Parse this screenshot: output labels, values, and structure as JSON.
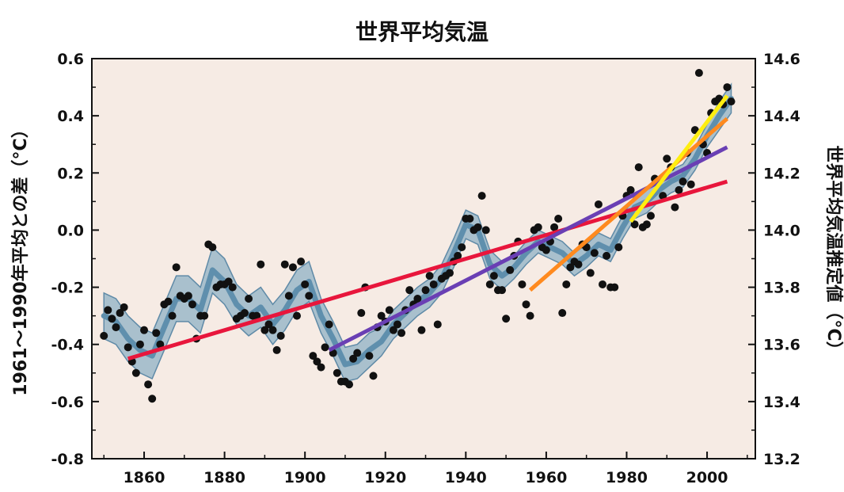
{
  "chart_data": {
    "type": "scatter",
    "title": "世界平均気温",
    "ylabel_left": "1961〜1990年平均との差（°C）",
    "ylabel_right": "世界平均気温推定値（°C）",
    "x_ticks": [
      1860,
      1880,
      1900,
      1920,
      1940,
      1960,
      1980,
      2000
    ],
    "xlim": [
      1847,
      2012
    ],
    "y_left_ticks": [
      "0.6",
      "0.4",
      "0.2",
      "0.0",
      "-0.2",
      "-0.4",
      "-0.6",
      "-0.8"
    ],
    "y_left_lim": [
      -0.8,
      0.6
    ],
    "y_right_ticks": [
      "14.6",
      "14.4",
      "14.2",
      "14.0",
      "13.8",
      "13.6",
      "13.4",
      "13.2"
    ],
    "y_right_lim": [
      13.2,
      14.6
    ],
    "colors": {
      "background": "#f6ebe4",
      "band_fill": "#8fb1c6",
      "band_edge": "#5f8aa7",
      "smooth_line": "#5f8fad",
      "points": "#111111",
      "trend_150yr": "#e8163c",
      "trend_100yr": "#6a3fb4",
      "trend_50yr": "#ff8a1f",
      "trend_25yr": "#ffee10"
    },
    "series": [
      {
        "type": "scatter",
        "x": [
          1850,
          1851,
          1852,
          1853,
          1854,
          1855,
          1856,
          1857,
          1858,
          1859,
          1860,
          1861,
          1862,
          1863,
          1864,
          1865,
          1866,
          1867,
          1868,
          1869,
          1870,
          1871,
          1872,
          1873,
          1874,
          1875,
          1876,
          1877,
          1878,
          1879,
          1880,
          1881,
          1882,
          1883,
          1884,
          1885,
          1886,
          1887,
          1888,
          1889,
          1890,
          1891,
          1892,
          1893,
          1894,
          1895,
          1896,
          1897,
          1898,
          1899,
          1900,
          1901,
          1902,
          1903,
          1904,
          1905,
          1906,
          1907,
          1908,
          1909,
          1910,
          1911,
          1912,
          1913,
          1914,
          1915,
          1916,
          1917,
          1918,
          1919,
          1920,
          1921,
          1922,
          1923,
          1924,
          1925,
          1926,
          1927,
          1928,
          1929,
          1930,
          1931,
          1932,
          1933,
          1934,
          1935,
          1936,
          1937,
          1938,
          1939,
          1940,
          1941,
          1942,
          1943,
          1944,
          1945,
          1946,
          1947,
          1948,
          1949,
          1950,
          1951,
          1952,
          1953,
          1954,
          1955,
          1956,
          1957,
          1958,
          1959,
          1960,
          1961,
          1962,
          1963,
          1964,
          1965,
          1966,
          1967,
          1968,
          1969,
          1970,
          1971,
          1972,
          1973,
          1974,
          1975,
          1976,
          1977,
          1978,
          1979,
          1980,
          1981,
          1982,
          1983,
          1984,
          1985,
          1986,
          1987,
          1988,
          1989,
          1990,
          1991,
          1992,
          1993,
          1994,
          1995,
          1996,
          1997,
          1998,
          1999,
          2000,
          2001,
          2002,
          2003,
          2004,
          2005,
          2006
        ],
        "y": [
          -0.37,
          -0.28,
          -0.31,
          -0.34,
          -0.29,
          -0.27,
          -0.41,
          -0.46,
          -0.5,
          -0.4,
          -0.35,
          -0.54,
          -0.59,
          -0.36,
          -0.4,
          -0.26,
          -0.25,
          -0.3,
          -0.13,
          -0.23,
          -0.24,
          -0.23,
          -0.26,
          -0.38,
          -0.3,
          -0.3,
          -0.05,
          -0.06,
          -0.2,
          -0.19,
          -0.19,
          -0.18,
          -0.2,
          -0.31,
          -0.3,
          -0.29,
          -0.24,
          -0.3,
          -0.3,
          -0.12,
          -0.35,
          -0.33,
          -0.35,
          -0.42,
          -0.37,
          -0.12,
          -0.23,
          -0.13,
          -0.3,
          -0.11,
          -0.19,
          -0.23,
          -0.44,
          -0.46,
          -0.48,
          -0.41,
          -0.33,
          -0.43,
          -0.5,
          -0.53,
          -0.53,
          -0.54,
          -0.45,
          -0.43,
          -0.29,
          -0.2,
          -0.44,
          -0.51,
          -0.34,
          -0.3,
          -0.32,
          -0.28,
          -0.35,
          -0.33,
          -0.36,
          -0.28,
          -0.21,
          -0.26,
          -0.24,
          -0.35,
          -0.21,
          -0.16,
          -0.19,
          -0.33,
          -0.17,
          -0.16,
          -0.15,
          -0.11,
          -0.09,
          -0.06,
          0.04,
          0.04,
          0.0,
          0.01,
          0.12,
          0.0,
          -0.19,
          -0.16,
          -0.21,
          -0.21,
          -0.31,
          -0.14,
          -0.09,
          -0.04,
          -0.19,
          -0.26,
          -0.3,
          0.0,
          0.01,
          -0.06,
          -0.07,
          -0.04,
          0.01,
          0.04,
          -0.29,
          -0.19,
          -0.13,
          -0.11,
          -0.12,
          -0.05,
          -0.06,
          -0.15,
          -0.08,
          0.09,
          -0.19,
          -0.09,
          -0.2,
          -0.2,
          -0.06,
          0.05,
          0.12,
          0.14,
          0.02,
          0.22,
          0.01,
          0.02,
          0.05,
          0.18,
          0.17,
          0.12,
          0.25,
          0.22,
          0.08,
          0.14,
          0.17,
          0.27,
          0.16,
          0.35,
          0.55,
          0.3,
          0.27,
          0.41,
          0.45,
          0.46,
          0.44,
          0.5,
          0.45
        ]
      },
      {
        "type": "smoothed",
        "x": [
          1850,
          1853,
          1856,
          1859,
          1862,
          1865,
          1868,
          1871,
          1874,
          1877,
          1880,
          1883,
          1886,
          1889,
          1892,
          1895,
          1898,
          1901,
          1904,
          1907,
          1910,
          1913,
          1916,
          1919,
          1922,
          1925,
          1928,
          1931,
          1934,
          1937,
          1940,
          1943,
          1946,
          1949,
          1952,
          1955,
          1958,
          1961,
          1964,
          1967,
          1970,
          1973,
          1976,
          1979,
          1982,
          1985,
          1988,
          1991,
          1994,
          1997,
          2000,
          2003,
          2006
        ],
        "y": [
          -0.3,
          -0.32,
          -0.38,
          -0.42,
          -0.44,
          -0.34,
          -0.24,
          -0.24,
          -0.28,
          -0.14,
          -0.18,
          -0.26,
          -0.3,
          -0.27,
          -0.33,
          -0.28,
          -0.21,
          -0.18,
          -0.3,
          -0.38,
          -0.47,
          -0.46,
          -0.42,
          -0.39,
          -0.33,
          -0.29,
          -0.25,
          -0.22,
          -0.17,
          -0.08,
          0.02,
          0.0,
          -0.12,
          -0.16,
          -0.13,
          -0.08,
          -0.04,
          -0.06,
          -0.08,
          -0.12,
          -0.09,
          -0.05,
          -0.07,
          0.01,
          0.08,
          0.1,
          0.14,
          0.17,
          0.19,
          0.25,
          0.33,
          0.4,
          0.46
        ],
        "band": [
          0.08,
          0.08,
          0.08,
          0.08,
          0.08,
          0.08,
          0.08,
          0.08,
          0.08,
          0.08,
          0.08,
          0.07,
          0.07,
          0.07,
          0.07,
          0.07,
          0.07,
          0.07,
          0.06,
          0.06,
          0.06,
          0.06,
          0.06,
          0.05,
          0.05,
          0.05,
          0.05,
          0.05,
          0.05,
          0.05,
          0.05,
          0.05,
          0.05,
          0.05,
          0.04,
          0.04,
          0.04,
          0.04,
          0.04,
          0.04,
          0.04,
          0.04,
          0.04,
          0.04,
          0.04,
          0.04,
          0.04,
          0.04,
          0.04,
          0.04,
          0.04,
          0.05,
          0.05
        ]
      },
      {
        "type": "trend",
        "name": "150",
        "color": "#e8163c",
        "x": [
          1856,
          2005
        ],
        "y": [
          -0.45,
          0.17
        ]
      },
      {
        "type": "trend",
        "name": "100",
        "color": "#6a3fb4",
        "x": [
          1906,
          2005
        ],
        "y": [
          -0.42,
          0.29
        ]
      },
      {
        "type": "trend",
        "name": "50",
        "color": "#ff8a1f",
        "x": [
          1956,
          2005
        ],
        "y": [
          -0.21,
          0.39
        ]
      },
      {
        "type": "trend",
        "name": "25",
        "color": "#ffee10",
        "x": [
          1981,
          2005
        ],
        "y": [
          0.03,
          0.47
        ]
      }
    ],
    "grid": false,
    "legend": "none"
  }
}
